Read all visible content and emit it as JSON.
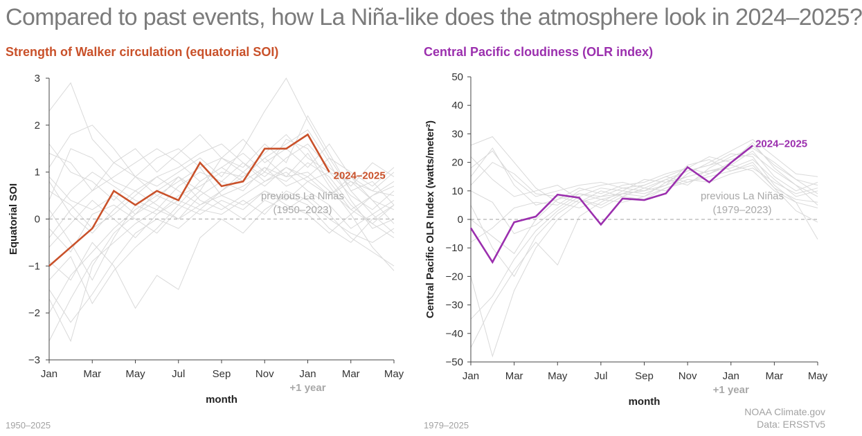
{
  "title": "Compared to past events, how La Niña-like does the atmosphere look in 2024–2025?",
  "colors": {
    "soi": "#c9512a",
    "olr": "#9b2fae",
    "background_lines": "#d9d9d9",
    "zero_line": "#b5b5b5"
  },
  "footer": {
    "left_years": "1950–2025",
    "right_years": "1979–2025",
    "credit_line1": "NOAA Climate.gov",
    "credit_line2": "Data: ERSSTv5"
  },
  "chart_data": [
    {
      "type": "line",
      "title": "Strength of Walker circulation (equatorial SOI)",
      "xlabel": "month",
      "ylabel": "Equatorial SOI",
      "x_ticks": [
        "Jan",
        "Mar",
        "May",
        "Jul",
        "Sep",
        "Nov",
        "Jan",
        "Mar",
        "May"
      ],
      "x_tick_sublabel": "+1 year",
      "ylim": [
        -3,
        3
      ],
      "y_ticks": [
        "−3",
        "−2",
        "−1",
        "0",
        "1",
        "2",
        "3"
      ],
      "zero_line": "dashed",
      "legend": "direct labels",
      "annotation": {
        "line1": "previous La Niñas",
        "line2": "(1950–2023)"
      },
      "series": [
        {
          "name": "2024–2025",
          "x": [
            "Jan 2024",
            "Feb 2024",
            "Mar 2024",
            "Apr 2024",
            "May 2024",
            "Jun 2024",
            "Jul 2024",
            "Aug 2024",
            "Sep 2024",
            "Oct 2024",
            "Nov 2024",
            "Dec 2024",
            "Jan 2025",
            "Feb 2025"
          ],
          "values": [
            -1.0,
            -0.6,
            -0.2,
            0.6,
            0.3,
            0.6,
            0.4,
            1.2,
            0.7,
            0.8,
            1.5,
            1.5,
            1.8,
            1.0
          ]
        }
      ],
      "background_series": [
        [
          0.2,
          -0.5,
          -1.3,
          -0.4,
          0.3,
          0.1,
          0.5,
          0.7,
          1.0,
          0.9,
          1.3,
          1.6,
          1.9,
          1.2,
          0.4,
          -0.2,
          0.0
        ],
        [
          -1.7,
          -2.6,
          -1.0,
          -0.3,
          0.1,
          0.4,
          0.9,
          0.6,
          1.3,
          1.1,
          1.6,
          1.2,
          2.2,
          1.4,
          0.6,
          0.8,
          0.3
        ],
        [
          1.6,
          1.0,
          0.8,
          0.4,
          0.9,
          1.3,
          1.5,
          1.1,
          0.5,
          0.7,
          1.0,
          0.8,
          1.2,
          0.9,
          0.3,
          -0.1,
          -0.4
        ],
        [
          -0.4,
          0.2,
          0.6,
          1.2,
          0.9,
          0.5,
          0.3,
          0.8,
          1.1,
          1.4,
          1.0,
          1.7,
          1.5,
          0.8,
          0.2,
          0.5,
          0.7
        ],
        [
          1.1,
          1.8,
          2.0,
          1.5,
          0.9,
          0.7,
          1.0,
          1.3,
          0.9,
          1.5,
          2.3,
          3.0,
          2.1,
          1.3,
          0.6,
          0.1,
          -0.3
        ],
        [
          -2.6,
          -1.7,
          -0.9,
          -0.5,
          -0.1,
          0.2,
          0.0,
          0.5,
          0.8,
          0.6,
          1.1,
          0.9,
          1.4,
          0.7,
          0.1,
          -0.6,
          -1.1
        ],
        [
          0.6,
          0.3,
          -0.2,
          0.1,
          0.5,
          0.9,
          0.6,
          0.3,
          0.6,
          1.0,
          0.7,
          1.1,
          0.9,
          0.5,
          0.9,
          0.4,
          0.2
        ],
        [
          -1.3,
          -0.8,
          -1.8,
          -1.1,
          -0.6,
          -0.2,
          0.3,
          0.1,
          0.4,
          0.2,
          0.6,
          0.4,
          0.8,
          1.0,
          0.5,
          0.2,
          0.6
        ],
        [
          2.3,
          2.9,
          1.7,
          1.2,
          1.5,
          1.0,
          1.4,
          1.8,
          1.3,
          1.7,
          1.2,
          1.5,
          1.1,
          1.6,
          0.9,
          0.6,
          1.0
        ],
        [
          -0.9,
          -1.3,
          -0.5,
          -1.0,
          -1.9,
          -1.2,
          -1.5,
          -0.4,
          0.0,
          -0.3,
          0.2,
          0.5,
          0.3,
          -0.2,
          -0.5,
          0.0,
          0.3
        ],
        [
          0.0,
          0.6,
          1.0,
          0.7,
          0.4,
          0.2,
          0.7,
          1.0,
          0.8,
          1.2,
          0.9,
          1.3,
          1.6,
          1.1,
          0.7,
          1.2,
          0.9
        ],
        [
          0.9,
          0.4,
          0.2,
          0.5,
          0.1,
          0.6,
          0.9,
          0.4,
          0.2,
          0.5,
          0.8,
          1.0,
          0.6,
          0.3,
          -0.2,
          0.1,
          0.4
        ],
        [
          -2.0,
          -1.2,
          -0.7,
          -0.2,
          0.2,
          0.5,
          0.8,
          1.1,
          1.3,
          1.0,
          1.4,
          1.8,
          1.3,
          1.0,
          0.8,
          0.4,
          -0.1
        ],
        [
          1.4,
          1.2,
          0.6,
          0.9,
          1.2,
          1.5,
          1.2,
          0.8,
          1.1,
          0.8,
          1.1,
          0.7,
          0.9,
          1.3,
          1.0,
          0.7,
          1.1
        ],
        [
          -0.2,
          -0.7,
          0.1,
          0.3,
          0.0,
          -0.3,
          0.2,
          0.6,
          0.3,
          0.0,
          0.4,
          0.2,
          0.5,
          0.1,
          -0.4,
          -0.7,
          -1.0
        ],
        [
          0.4,
          1.5,
          1.3,
          0.8,
          0.6,
          0.9,
          1.1,
          1.4,
          1.6,
          1.2,
          0.8,
          1.1,
          0.8,
          0.5,
          0.8,
          0.6,
          0.5
        ],
        [
          -0.6,
          -0.1,
          0.4,
          0.0,
          -0.4,
          0.1,
          0.4,
          0.2,
          0.6,
          0.9,
          1.3,
          0.9,
          1.0,
          0.6,
          0.2,
          -0.1,
          0.3
        ],
        [
          0.8,
          0.1,
          -0.3,
          0.2,
          0.6,
          0.3,
          0.0,
          0.3,
          0.5,
          0.3,
          0.6,
          0.3,
          0.1,
          -0.3,
          0.1,
          0.5,
          0.8
        ],
        [
          -1.5,
          -2.2,
          -1.6,
          -0.9,
          -0.3,
          0.0,
          -0.2,
          0.2,
          0.1,
          0.4,
          0.1,
          0.6,
          0.4,
          0.0,
          -0.3,
          -0.5,
          -0.2
        ]
      ]
    },
    {
      "type": "line",
      "title": "Central Pacific cloudiness (OLR index)",
      "xlabel": "month",
      "ylabel": "Central Pacific OLR Index (watts/meter²)",
      "x_ticks": [
        "Jan",
        "Mar",
        "May",
        "Jul",
        "Sep",
        "Nov",
        "Jan",
        "Mar",
        "May"
      ],
      "x_tick_sublabel": "+1 year",
      "ylim": [
        -50,
        50
      ],
      "y_ticks": [
        "−50",
        "−40",
        "−30",
        "−20",
        "−10",
        "0",
        "10",
        "20",
        "30",
        "40",
        "50"
      ],
      "zero_line": "dashed",
      "legend": "direct labels",
      "annotation": {
        "line1": "previous La Niñas",
        "line2": "(1979–2023)"
      },
      "series": [
        {
          "name": "2024–2025",
          "x": [
            "Jan 2024",
            "Feb 2024",
            "Mar 2024",
            "Apr 2024",
            "May 2024",
            "Jun 2024",
            "Jul 2024",
            "Aug 2024",
            "Sep 2024",
            "Oct 2024",
            "Nov 2024",
            "Dec 2024",
            "Jan 2025",
            "Feb 2025"
          ],
          "values": [
            -3,
            -15,
            -1,
            1,
            8.7,
            7.6,
            -1.8,
            7.3,
            6.8,
            9.1,
            18.3,
            13,
            19.9,
            25.9
          ]
        }
      ],
      "background_series": [
        [
          15,
          25,
          12,
          5,
          7,
          9,
          8,
          11,
          10,
          14,
          17,
          19,
          23,
          22,
          12,
          6,
          4
        ],
        [
          -20,
          -48,
          -25,
          -10,
          0,
          6,
          8,
          9,
          12,
          15,
          18,
          22,
          20,
          27,
          18,
          12,
          8
        ],
        [
          26,
          29,
          20,
          11,
          6,
          4,
          7,
          9,
          8,
          13,
          15,
          17,
          19,
          24,
          15,
          10,
          13
        ],
        [
          -35,
          -27,
          -14,
          -4,
          3,
          8,
          11,
          10,
          9,
          12,
          19,
          21,
          17,
          20,
          11,
          3,
          -1
        ],
        [
          5,
          -10,
          -20,
          -6,
          2,
          7,
          4,
          8,
          11,
          14,
          12,
          18,
          22,
          25,
          20,
          14,
          9
        ],
        [
          18,
          24,
          14,
          8,
          10,
          12,
          13,
          11,
          12,
          15,
          13,
          16,
          19,
          17,
          10,
          6,
          -7
        ],
        [
          -8,
          -3,
          4,
          6,
          5,
          10,
          12,
          13,
          11,
          10,
          16,
          20,
          24,
          28,
          22,
          16,
          15
        ],
        [
          10,
          6,
          -5,
          -2,
          4,
          9,
          7,
          6,
          8,
          11,
          14,
          13,
          16,
          18,
          13,
          9,
          11
        ],
        [
          -45,
          -30,
          -18,
          -8,
          -16,
          1,
          6,
          10,
          14,
          13,
          17,
          19,
          21,
          23,
          17,
          12,
          5
        ],
        [
          22,
          14,
          8,
          10,
          12,
          7,
          5,
          9,
          10,
          12,
          15,
          17,
          18,
          21,
          14,
          8,
          10
        ],
        [
          0,
          -6,
          -12,
          0,
          7,
          11,
          9,
          12,
          13,
          16,
          18,
          16,
          20,
          26,
          19,
          14,
          12
        ],
        [
          12,
          20,
          16,
          9,
          8,
          6,
          10,
          8,
          7,
          11,
          13,
          15,
          17,
          19,
          11,
          7,
          6
        ]
      ]
    }
  ]
}
